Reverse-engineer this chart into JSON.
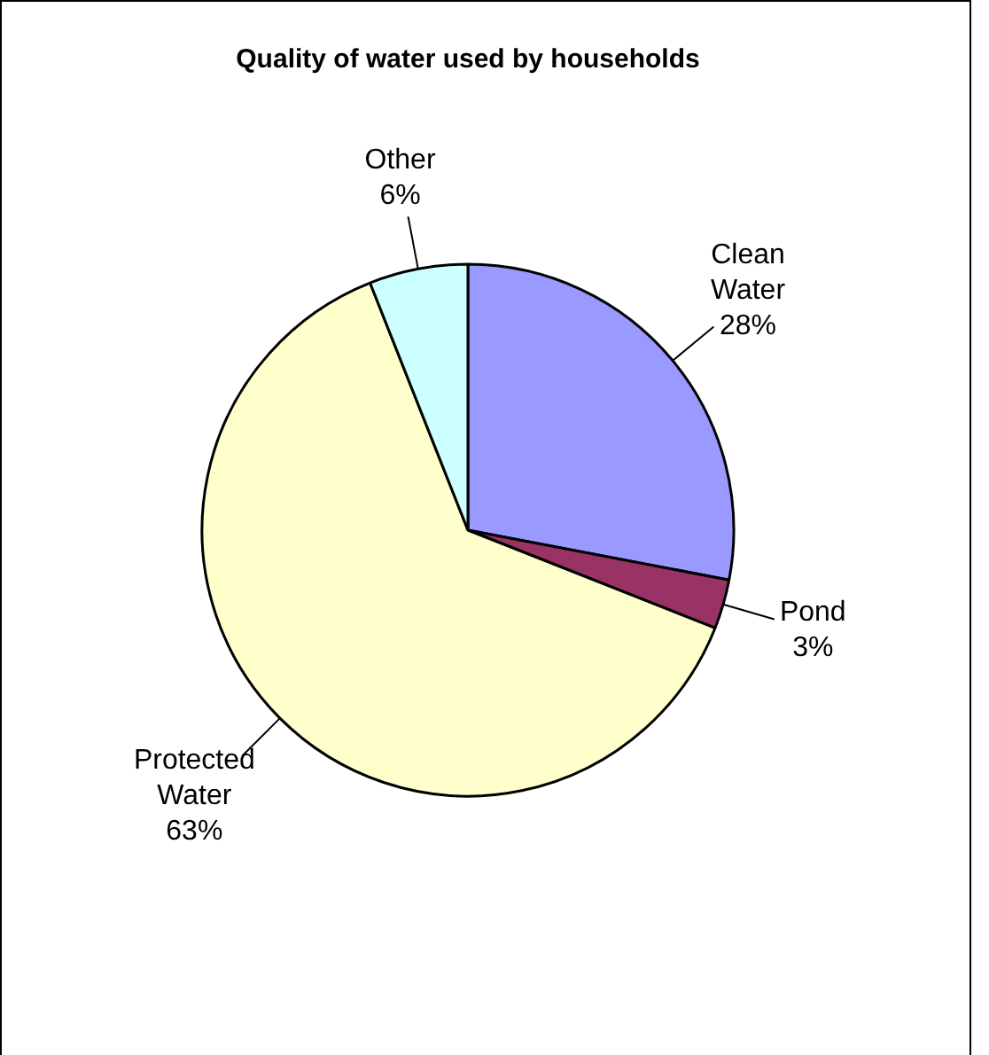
{
  "chart_data": {
    "type": "pie",
    "title": "Quality of water used by households",
    "categories": [
      "Clean Water",
      "Pond",
      "Protected Water",
      "Other"
    ],
    "values": [
      28,
      3,
      63,
      6
    ],
    "value_labels": [
      "28%",
      "3%",
      "63%",
      "6%"
    ],
    "colors": [
      "#9999ff",
      "#993366",
      "#ffffcc",
      "#ccffff"
    ]
  }
}
